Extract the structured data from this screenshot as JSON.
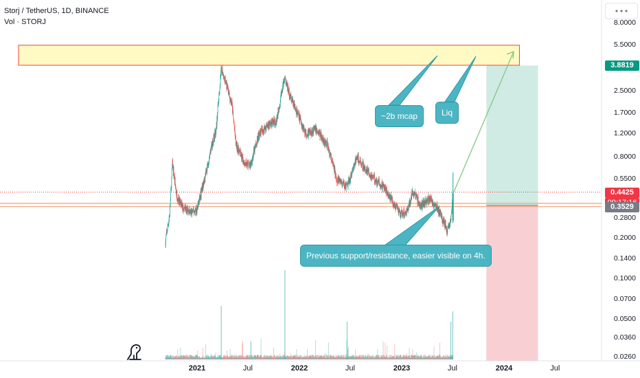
{
  "legend": {
    "symbol": "Storj / TetherUS, 1D, BINANCE",
    "volume": "Vol · STORJ"
  },
  "icons": {
    "logo": "tradingview-dino-icon",
    "scale_menu": "scale-menu-icon"
  },
  "colors": {
    "up": "#26a69a",
    "down": "#ef5350",
    "callout": "#4cb5c3",
    "zone_fill": "#fff9c4",
    "zone_border": "#f44336",
    "target_fill": "#d0ebe3",
    "stop_fill": "#f8d0d3",
    "arrow": "#81c784",
    "level_line": "#f4a07a"
  },
  "callouts": {
    "mcap": "~2b mcap",
    "liq": "Liq",
    "support": "Previous support/resistance, easier visible on 4h."
  },
  "price_tags": {
    "target": "3.8819",
    "current": "0.4425",
    "countdown": "09:17:16",
    "entry": "0.3529"
  },
  "chart_data": {
    "type": "candlestick",
    "title": "Storj / TetherUS, 1D, BINANCE",
    "y_scale": "log",
    "y_ticks": [
      "8.0000",
      "5.5000",
      "2.5000",
      "1.7000",
      "1.2000",
      "0.8000",
      "0.5500",
      "0.2800",
      "0.2000",
      "0.1400",
      "0.1000",
      "0.0700",
      "0.0500",
      "0.0360",
      "0.0260"
    ],
    "x_ticks": [
      "2021",
      "Jul",
      "2022",
      "Jul",
      "2023",
      "Jul",
      "2024",
      "Jul"
    ],
    "price_path": [
      {
        "date": "2020-09-10",
        "price": 0.19
      },
      {
        "date": "2020-09-25",
        "price": 0.3
      },
      {
        "date": "2020-10-05",
        "price": 0.72
      },
      {
        "date": "2020-10-20",
        "price": 0.42
      },
      {
        "date": "2020-11-10",
        "price": 0.34
      },
      {
        "date": "2020-12-10",
        "price": 0.31
      },
      {
        "date": "2021-01-01",
        "price": 0.33
      },
      {
        "date": "2021-02-01",
        "price": 0.6
      },
      {
        "date": "2021-02-20",
        "price": 0.95
      },
      {
        "date": "2021-03-10",
        "price": 1.3
      },
      {
        "date": "2021-03-28",
        "price": 3.7
      },
      {
        "date": "2021-04-15",
        "price": 2.8
      },
      {
        "date": "2021-05-05",
        "price": 2.0
      },
      {
        "date": "2021-05-20",
        "price": 1.0
      },
      {
        "date": "2021-06-15",
        "price": 0.75
      },
      {
        "date": "2021-07-10",
        "price": 0.7
      },
      {
        "date": "2021-08-10",
        "price": 1.2
      },
      {
        "date": "2021-09-10",
        "price": 1.4
      },
      {
        "date": "2021-10-10",
        "price": 1.5
      },
      {
        "date": "2021-11-10",
        "price": 3.2
      },
      {
        "date": "2021-11-25",
        "price": 2.4
      },
      {
        "date": "2021-12-20",
        "price": 1.8
      },
      {
        "date": "2022-01-25",
        "price": 1.2
      },
      {
        "date": "2022-03-01",
        "price": 1.3
      },
      {
        "date": "2022-04-10",
        "price": 1.0
      },
      {
        "date": "2022-05-15",
        "price": 0.55
      },
      {
        "date": "2022-06-20",
        "price": 0.48
      },
      {
        "date": "2022-07-25",
        "price": 0.8
      },
      {
        "date": "2022-09-10",
        "price": 0.6
      },
      {
        "date": "2022-11-10",
        "price": 0.45
      },
      {
        "date": "2022-12-25",
        "price": 0.3
      },
      {
        "date": "2023-01-20",
        "price": 0.32
      },
      {
        "date": "2023-02-10",
        "price": 0.45
      },
      {
        "date": "2023-03-10",
        "price": 0.35
      },
      {
        "date": "2023-04-10",
        "price": 0.4
      },
      {
        "date": "2023-05-10",
        "price": 0.33
      },
      {
        "date": "2023-06-12",
        "price": 0.23
      },
      {
        "date": "2023-06-25",
        "price": 0.27
      },
      {
        "date": "2023-07-03",
        "price": 0.4425
      }
    ],
    "levels": {
      "resistance_zone": [
        3.9,
        5.5
      ],
      "support_band": [
        0.345,
        0.365
      ],
      "target": 3.8819,
      "entry": 0.3529,
      "current": 0.4425
    },
    "grid": false,
    "legend": "top-left"
  }
}
